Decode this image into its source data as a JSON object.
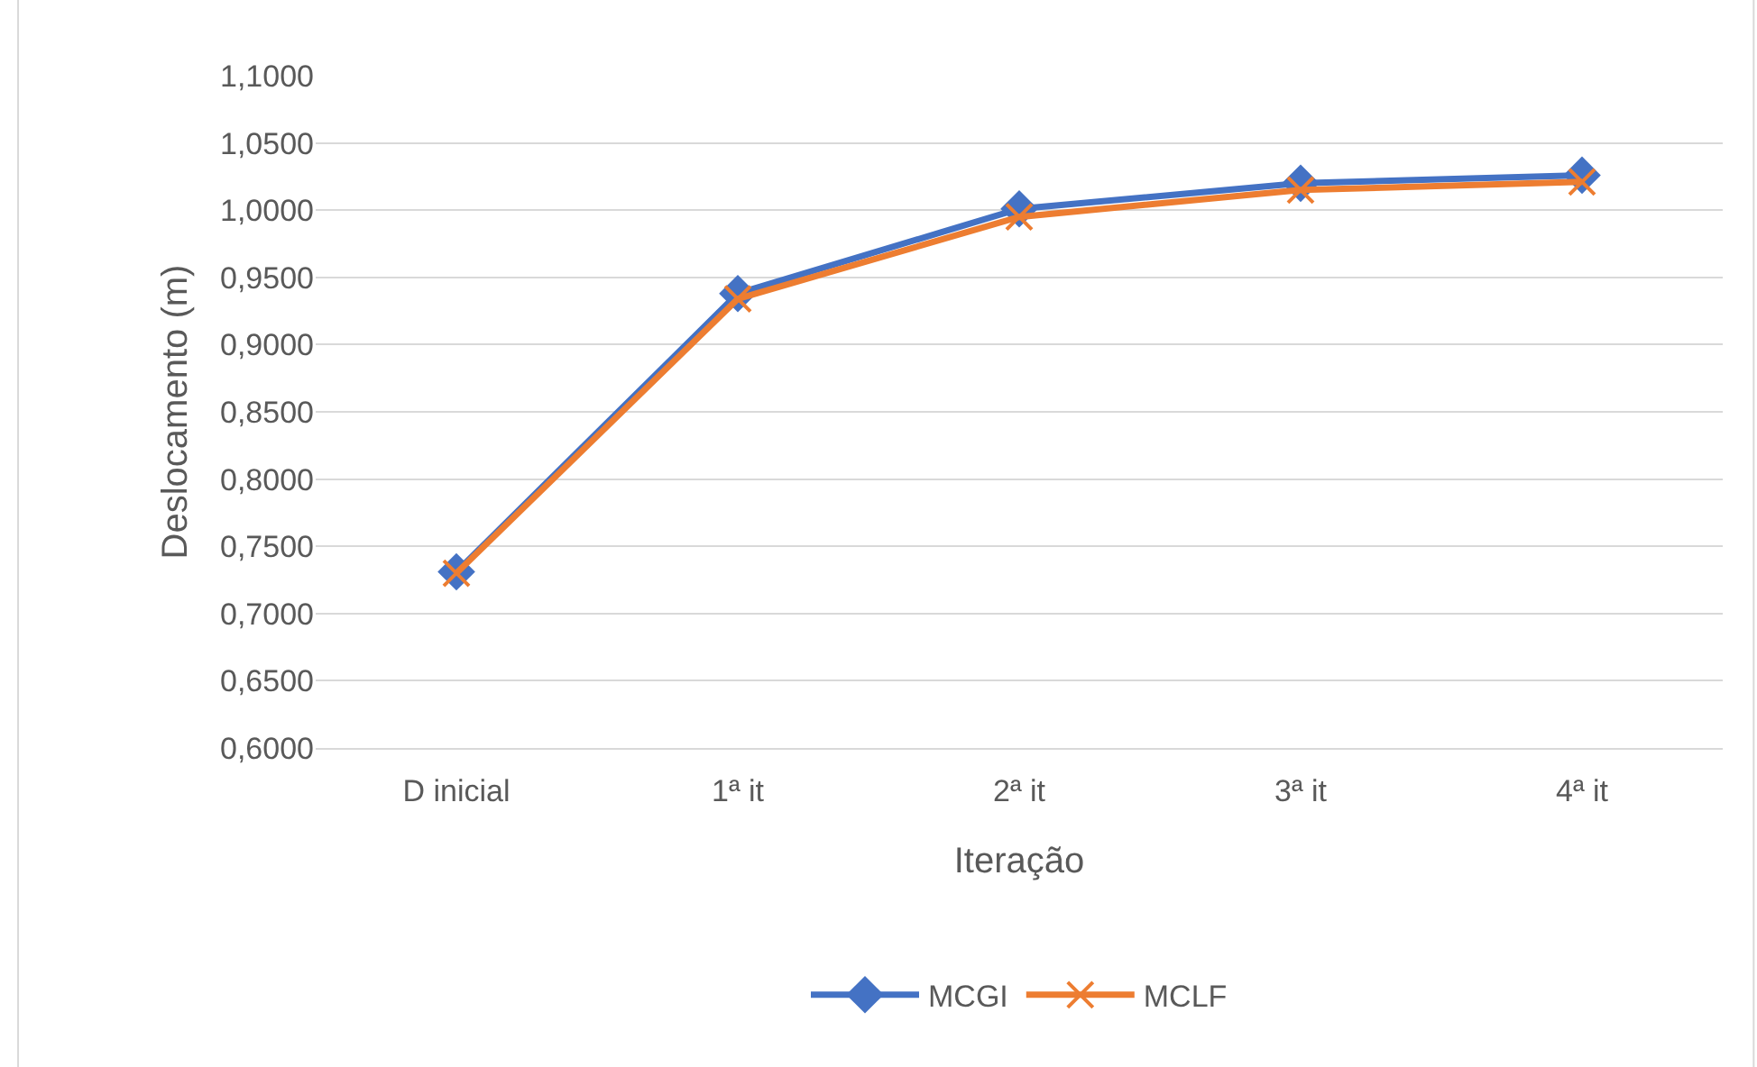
{
  "chart_data": {
    "type": "line",
    "xlabel": "Iteração",
    "ylabel": "Deslocamento (m)",
    "categories": [
      "D inicial",
      "1ª it",
      "2ª it",
      "3ª it",
      "4ª it"
    ],
    "series": [
      {
        "name": "MCGI",
        "color": "#4472c4",
        "marker": "diamond",
        "values": [
          0.731,
          0.938,
          1.001,
          1.02,
          1.026
        ]
      },
      {
        "name": "MCLF",
        "color": "#ed7d31",
        "marker": "cross",
        "values": [
          0.73,
          0.934,
          0.995,
          1.015,
          1.021
        ]
      }
    ],
    "ylim": [
      0.6,
      1.1
    ],
    "yticks": [
      {
        "value": 0.6,
        "label": "0,6000"
      },
      {
        "value": 0.65,
        "label": "0,6500"
      },
      {
        "value": 0.7,
        "label": "0,7000"
      },
      {
        "value": 0.75,
        "label": "0,7500"
      },
      {
        "value": 0.8,
        "label": "0,8000"
      },
      {
        "value": 0.85,
        "label": "0,8500"
      },
      {
        "value": 0.9,
        "label": "0,9000"
      },
      {
        "value": 0.95,
        "label": "0,9500"
      },
      {
        "value": 1.0,
        "label": "1,0000"
      },
      {
        "value": 1.05,
        "label": "1,0500"
      },
      {
        "value": 1.1,
        "label": "1,1000"
      }
    ],
    "grid": "y",
    "legend": "bottom",
    "line_style": "solid"
  }
}
